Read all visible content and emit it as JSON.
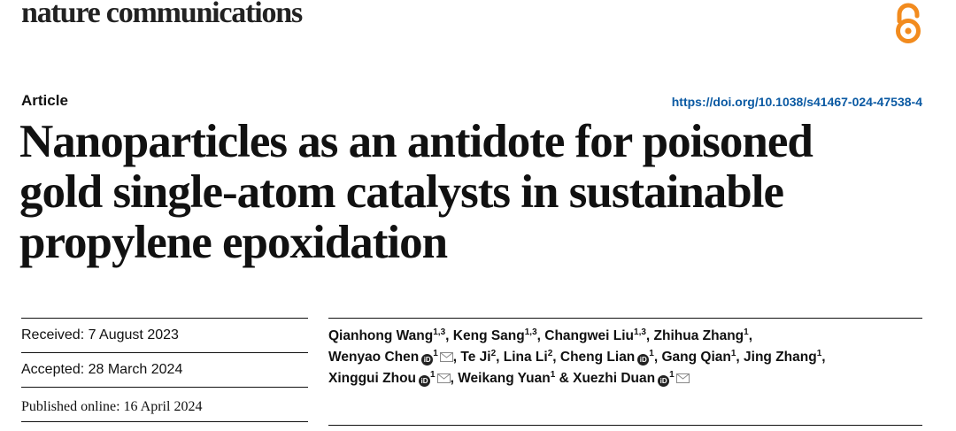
{
  "journal": "nature communications",
  "article_type": "Article",
  "doi": "https://doi.org/10.1038/s41467-024-47538-4",
  "title_lines": [
    "Nanoparticles as an antidote for poisoned",
    "gold single-atom catalysts in sustainable",
    "propylene epoxidation"
  ],
  "dates": {
    "received": "Received: 7 August 2023",
    "accepted": "Accepted: 28 March 2024",
    "published": "Published online: 16 April 2024"
  },
  "authors": [
    {
      "name": "Qianhong Wang",
      "aff": "1,3",
      "orcid": false,
      "email": false
    },
    {
      "name": "Keng Sang",
      "aff": "1,3",
      "orcid": false,
      "email": false
    },
    {
      "name": "Changwei Liu",
      "aff": "1,3",
      "orcid": false,
      "email": false
    },
    {
      "name": "Zhihua Zhang",
      "aff": "1",
      "orcid": false,
      "email": false
    },
    {
      "name": "Wenyao Chen",
      "aff": "1",
      "orcid": true,
      "email": true
    },
    {
      "name": "Te Ji",
      "aff": "2",
      "orcid": false,
      "email": false
    },
    {
      "name": "Lina Li",
      "aff": "2",
      "orcid": false,
      "email": false
    },
    {
      "name": "Cheng Lian",
      "aff": "1",
      "orcid": true,
      "email": false
    },
    {
      "name": "Gang Qian",
      "aff": "1",
      "orcid": false,
      "email": false
    },
    {
      "name": "Jing Zhang",
      "aff": "1",
      "orcid": false,
      "email": false
    },
    {
      "name": "Xinggui Zhou",
      "aff": "1",
      "orcid": true,
      "email": true
    },
    {
      "name": "Weikang Yuan",
      "aff": "1",
      "orcid": false,
      "email": false
    },
    {
      "name": "Xuezhi Duan",
      "aff": "1",
      "orcid": true,
      "email": true
    }
  ],
  "colors": {
    "oa_icon": "#f28b1e",
    "doi_link": "#0b5aa3"
  }
}
